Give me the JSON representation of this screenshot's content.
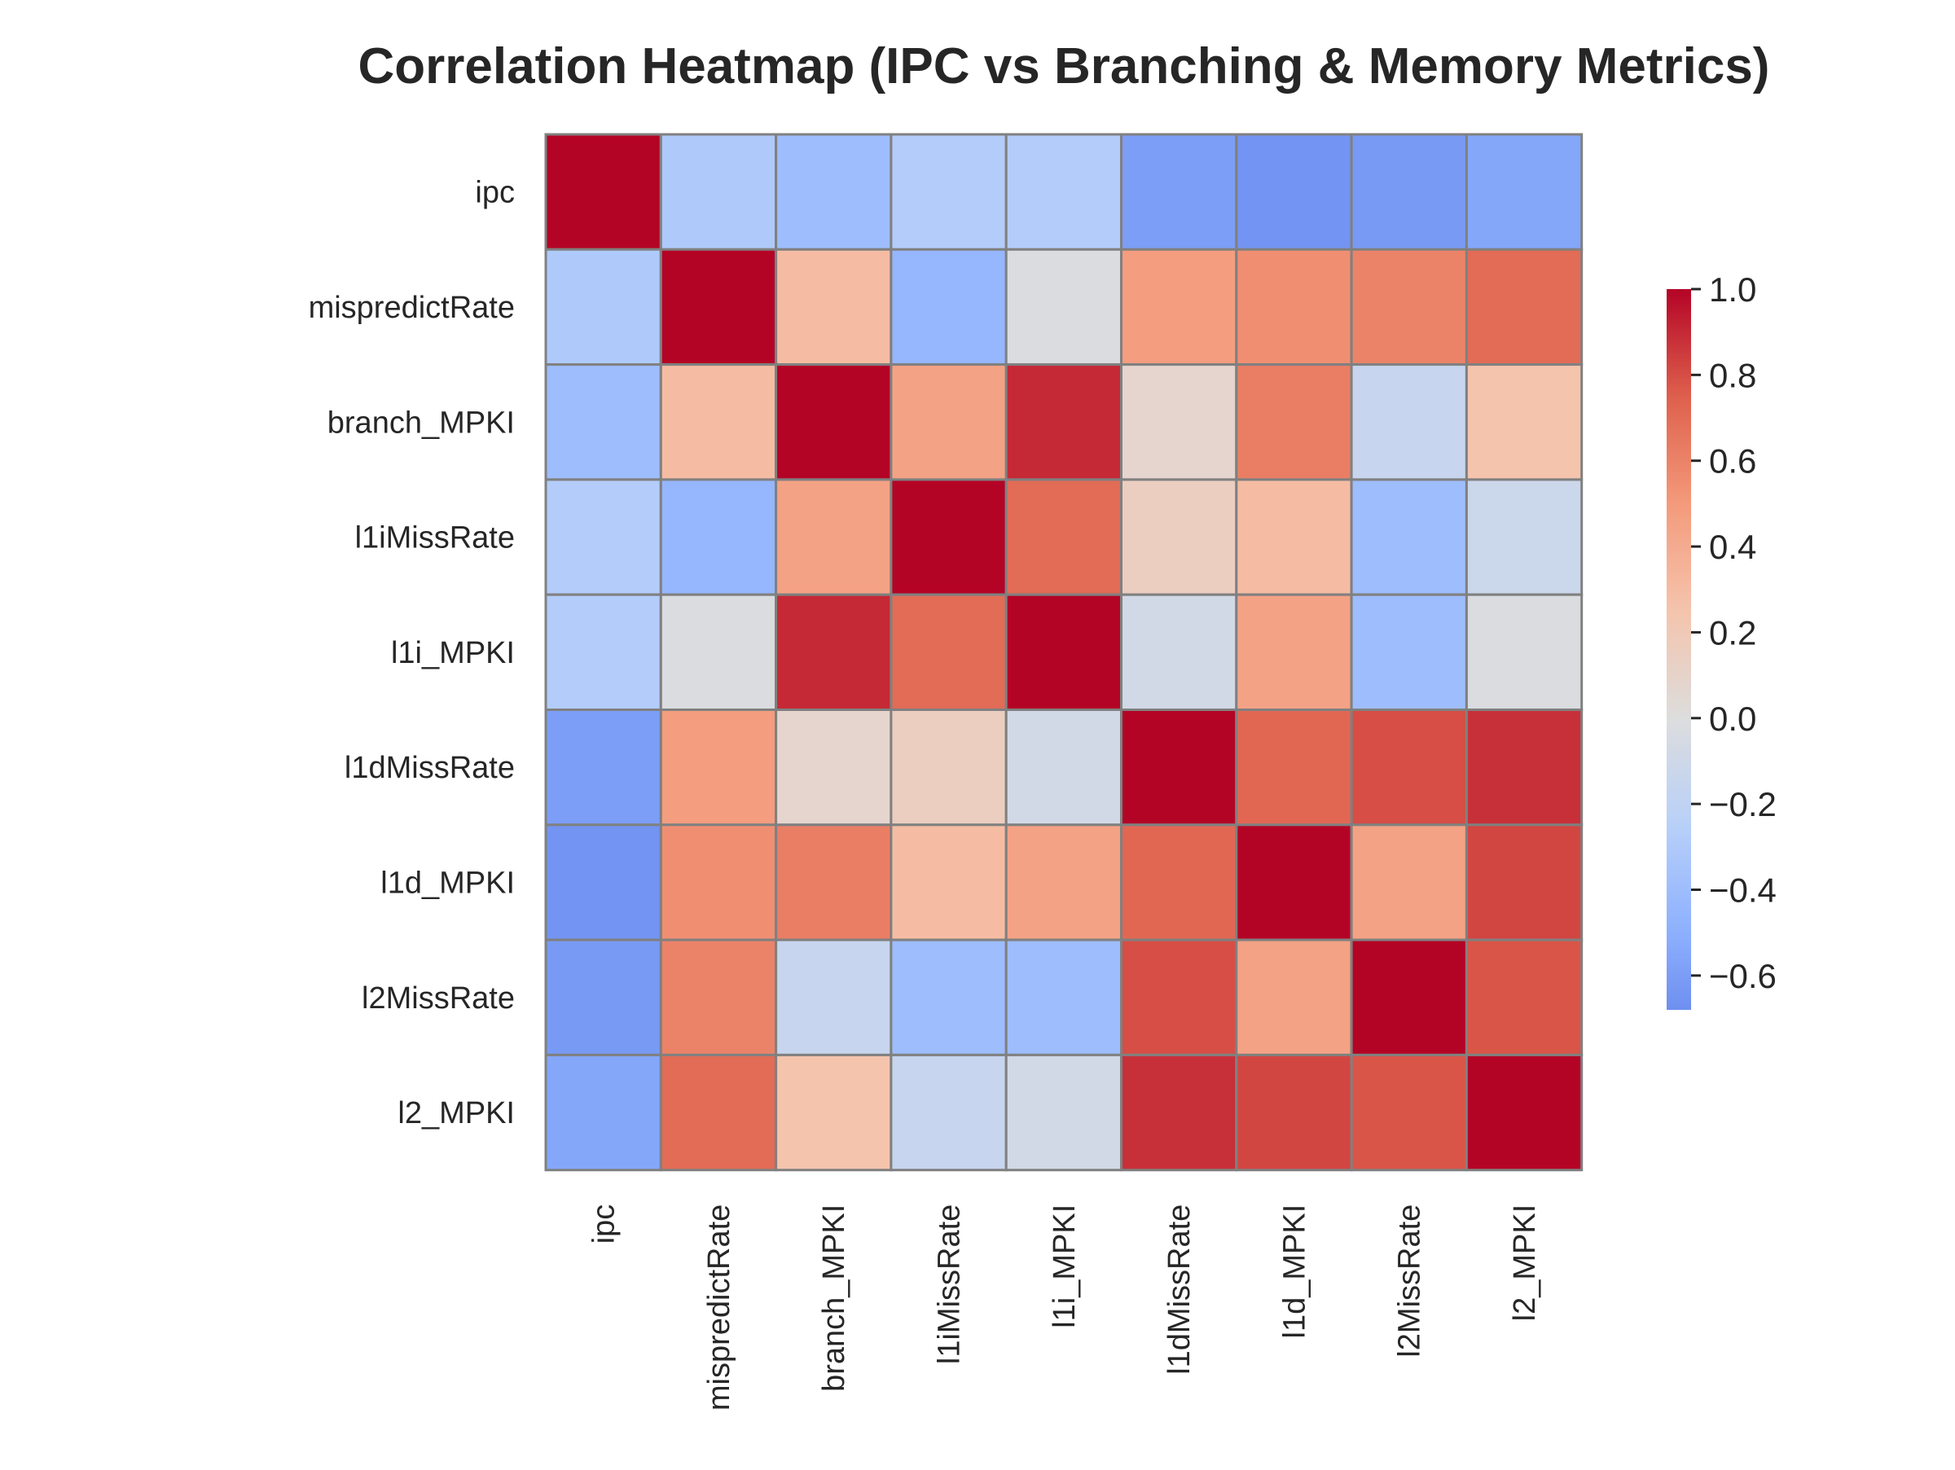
{
  "chart_data": {
    "type": "heatmap",
    "title": "Correlation Heatmap (IPC vs Branching & Memory Metrics)",
    "row_labels": [
      "ipc",
      "mispredictRate",
      "branch_MPKI",
      "l1iMissRate",
      "l1i_MPKI",
      "l1dMissRate",
      "l1d_MPKI",
      "l2MissRate",
      "l2_MPKI"
    ],
    "col_labels": [
      "ipc",
      "mispredictRate",
      "branch_MPKI",
      "l1iMissRate",
      "l1i_MPKI",
      "l1dMissRate",
      "l1d_MPKI",
      "l2MissRate",
      "l2_MPKI"
    ],
    "values": [
      [
        1.0,
        -0.3,
        -0.4,
        -0.28,
        -0.28,
        -0.6,
        -0.65,
        -0.62,
        -0.55
      ],
      [
        -0.3,
        1.0,
        0.3,
        -0.45,
        -0.02,
        0.48,
        0.55,
        0.6,
        0.7
      ],
      [
        -0.4,
        0.3,
        1.0,
        0.45,
        0.9,
        0.08,
        0.62,
        -0.15,
        0.25
      ],
      [
        -0.28,
        -0.45,
        0.45,
        1.0,
        0.7,
        0.15,
        0.3,
        -0.4,
        -0.12
      ],
      [
        -0.28,
        -0.02,
        0.9,
        0.7,
        1.0,
        -0.08,
        0.45,
        -0.4,
        -0.02
      ],
      [
        -0.6,
        0.48,
        0.08,
        0.15,
        -0.08,
        1.0,
        0.72,
        0.8,
        0.88
      ],
      [
        -0.65,
        0.55,
        0.62,
        0.3,
        0.45,
        0.72,
        1.0,
        0.45,
        0.82
      ],
      [
        -0.62,
        0.6,
        -0.15,
        -0.4,
        -0.4,
        0.8,
        0.45,
        1.0,
        0.78
      ],
      [
        -0.55,
        0.7,
        0.25,
        -0.15,
        -0.08,
        0.88,
        0.82,
        0.78,
        1.0
      ]
    ],
    "colormap": "coolwarm",
    "vmin": -0.68,
    "vmax": 1.0,
    "colorbar_ticks": [
      1.0,
      0.8,
      0.6,
      0.4,
      0.2,
      0.0,
      -0.2,
      -0.4,
      -0.6
    ],
    "colorbar_tick_labels": [
      "1.0",
      "0.8",
      "0.6",
      "0.4",
      "0.2",
      "0.0",
      "−0.2",
      "−0.4",
      "−0.6"
    ],
    "cell_border_color": "#808080",
    "grid": false,
    "legend": "colorbar-right"
  }
}
